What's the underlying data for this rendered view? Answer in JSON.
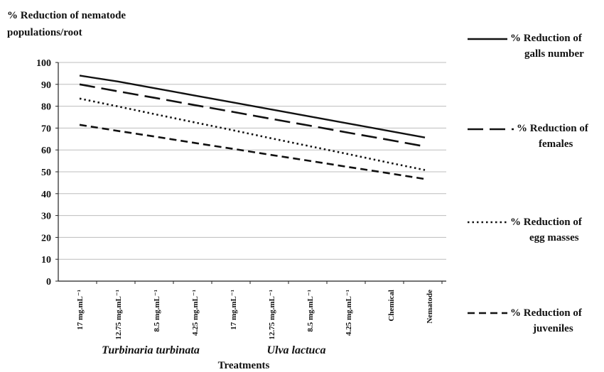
{
  "chart_data": {
    "type": "line",
    "ylabel_line1": "% Reduction of nematode",
    "ylabel_line2": "populations/root",
    "xlabel": "Treatments",
    "ylim": [
      0,
      100
    ],
    "yticks": [
      0,
      10,
      20,
      30,
      40,
      50,
      60,
      70,
      80,
      90,
      100
    ],
    "categories": [
      "17 mg.mL⁻¹",
      "12.75 mg.mL⁻¹",
      "8.5 mg.mL⁻¹",
      "4.25 mg.mL⁻¹",
      "17 mg.mL⁻¹",
      "12.75 mg.mL⁻¹",
      "8.5 mg.mL⁻¹",
      "4.25 mg.mL⁻¹",
      "Chemical",
      "Nematode"
    ],
    "groups": [
      {
        "label": "Turbinaria turbinata",
        "from": 0,
        "to": 3
      },
      {
        "label": "Ulva lactuca",
        "from": 4,
        "to": 7
      }
    ],
    "grid": true,
    "legend_position": "right",
    "series": [
      {
        "name_line1": "% Reduction of",
        "name_line2": "galls number",
        "dash": "solid",
        "values": [
          94,
          91.3,
          88.1,
          84.9,
          81.7,
          78.5,
          75.3,
          72.1,
          68.9,
          65.7
        ]
      },
      {
        "name_line1": "% Reduction of",
        "name_line2": "females",
        "dash": "longdash",
        "values": [
          90,
          86.8,
          83.7,
          80.5,
          77.4,
          74.2,
          71.1,
          67.9,
          64.8,
          61.6
        ]
      },
      {
        "name_line1": "% Reduction of",
        "name_line2": "egg masses",
        "dash": "dotted",
        "values": [
          83.5,
          79.9,
          76.2,
          72.6,
          69.0,
          65.3,
          61.7,
          58.1,
          54.4,
          50.8
        ]
      },
      {
        "name_line1": "% Reduction of",
        "name_line2": "juveniles",
        "dash": "shortdash",
        "values": [
          71.5,
          68.7,
          66.0,
          63.2,
          60.5,
          57.7,
          55.0,
          52.2,
          49.5,
          46.7
        ]
      }
    ],
    "colors": {
      "line": "#111111",
      "grid": "#bdbdbd",
      "axis": "#222222"
    }
  }
}
